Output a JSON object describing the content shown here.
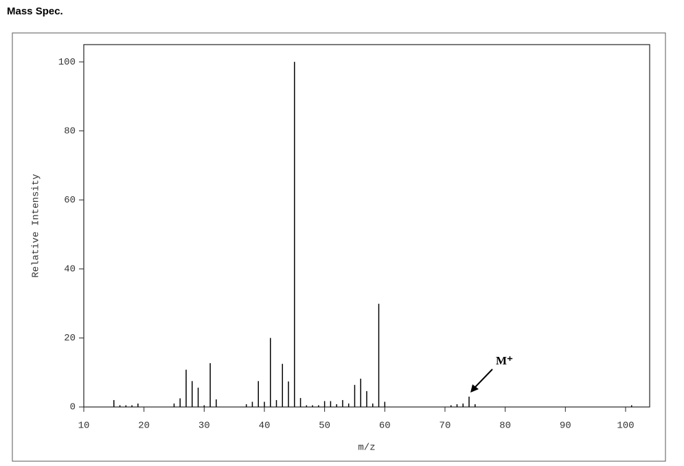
{
  "header": {
    "title": "Mass Spec."
  },
  "chart_data": {
    "type": "stem",
    "x_label": "m/z",
    "y_label": "Relative Intensity",
    "annotation": "M⁺",
    "x": [
      15,
      16,
      17,
      18,
      19,
      25,
      26,
      27,
      28,
      29,
      30,
      31,
      32,
      37,
      38,
      39,
      40,
      41,
      42,
      43,
      44,
      45,
      46,
      47,
      48,
      49,
      50,
      51,
      52,
      53,
      54,
      55,
      56,
      57,
      58,
      59,
      60,
      71,
      72,
      73,
      74,
      75,
      101
    ],
    "values": [
      2,
      0.5,
      0.5,
      0.5,
      1,
      1,
      2.5,
      10.8,
      7.5,
      5.6,
      0.5,
      12.7,
      2.2,
      0.8,
      1.5,
      7.5,
      1.5,
      20,
      2,
      12.5,
      7.4,
      100,
      2.6,
      0.5,
      0.5,
      0.5,
      1.7,
      1.7,
      0.8,
      2,
      1,
      6.4,
      8.2,
      4.6,
      1,
      29.9,
      1.5,
      0.5,
      0.8,
      1,
      3,
      0.8,
      0.5
    ],
    "color": "#000000",
    "xlim": [
      10,
      104
    ],
    "ylim": [
      0,
      105
    ],
    "xticks": [
      10,
      20,
      30,
      40,
      50,
      60,
      70,
      80,
      90,
      100
    ],
    "yticks": [
      0,
      20,
      40,
      60,
      80,
      100
    ]
  }
}
